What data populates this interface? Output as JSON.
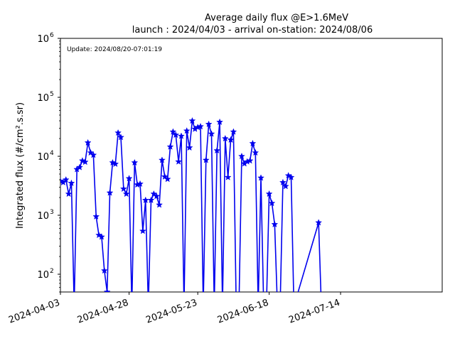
{
  "chart_data": {
    "type": "line",
    "title": "Average daily flux @E>1.6MeV",
    "subtitle": "launch : 2024/04/03 - arrival on-station: 2024/08/06",
    "annotation": "Update: 2024/08/20-07:01:19",
    "ylabel": "Integrated flux (#/cm².s.sr)",
    "xlabel": "",
    "y_scale": "log",
    "ylim": [
      50,
      1000000
    ],
    "xlim": [
      "2024-04-03",
      "2024-08-20"
    ],
    "x_ticks": [
      "2024-04-03",
      "2024-04-28",
      "2024-05-23",
      "2024-06-18",
      "2024-07-14"
    ],
    "y_ticks": [
      {
        "value": 100,
        "label": "10",
        "exp": "2"
      },
      {
        "value": 1000,
        "label": "10",
        "exp": "3"
      },
      {
        "value": 10000,
        "label": "10",
        "exp": "4"
      },
      {
        "value": 100000,
        "label": "10",
        "exp": "5"
      },
      {
        "value": 1000000,
        "label": "10",
        "exp": "6"
      }
    ],
    "color": "#0000ee",
    "marker": "star",
    "grid": false,
    "series": [
      {
        "points": [
          [
            "2024-04-03",
            3800
          ],
          [
            "2024-04-04",
            3600
          ],
          [
            "2024-04-05",
            4000
          ],
          [
            "2024-04-06",
            2300
          ],
          [
            "2024-04-07",
            3500
          ],
          [
            "2024-04-08",
            null
          ],
          [
            "2024-04-09",
            6000
          ],
          [
            "2024-04-10",
            6500
          ],
          [
            "2024-04-11",
            8400
          ],
          [
            "2024-04-12",
            8000
          ],
          [
            "2024-04-13",
            17000
          ],
          [
            "2024-04-14",
            11500
          ],
          [
            "2024-04-15",
            10500
          ],
          [
            "2024-04-16",
            950
          ],
          [
            "2024-04-17",
            460
          ],
          [
            "2024-04-18",
            430
          ],
          [
            "2024-04-19",
            115
          ],
          [
            "2024-04-20",
            50
          ],
          [
            "2024-04-21",
            2400
          ],
          [
            "2024-04-22",
            7800
          ],
          [
            "2024-04-23",
            7400
          ],
          [
            "2024-04-24",
            25000
          ],
          [
            "2024-04-25",
            21000
          ],
          [
            "2024-04-26",
            2800
          ],
          [
            "2024-04-27",
            2300
          ],
          [
            "2024-04-28",
            4200
          ],
          [
            "2024-04-29",
            null
          ],
          [
            "2024-04-30",
            7800
          ],
          [
            "2024-05-01",
            3300
          ],
          [
            "2024-05-02",
            3400
          ],
          [
            "2024-05-03",
            540
          ],
          [
            "2024-05-04",
            1800
          ],
          [
            "2024-05-05",
            null
          ],
          [
            "2024-05-06",
            1800
          ],
          [
            "2024-05-07",
            2300
          ],
          [
            "2024-05-08",
            2100
          ],
          [
            "2024-05-09",
            1500
          ],
          [
            "2024-05-10",
            8600
          ],
          [
            "2024-05-11",
            4500
          ],
          [
            "2024-05-12",
            4100
          ],
          [
            "2024-05-13",
            14500
          ],
          [
            "2024-05-14",
            26000
          ],
          [
            "2024-05-15",
            23000
          ],
          [
            "2024-05-16",
            8100
          ],
          [
            "2024-05-17",
            22000
          ],
          [
            "2024-05-18",
            null
          ],
          [
            "2024-05-19",
            27000
          ],
          [
            "2024-05-20",
            14000
          ],
          [
            "2024-05-21",
            40000
          ],
          [
            "2024-05-22",
            29000
          ],
          [
            "2024-05-23",
            31000
          ],
          [
            "2024-05-24",
            32000
          ],
          [
            "2024-05-25",
            null
          ],
          [
            "2024-05-26",
            8600
          ],
          [
            "2024-05-27",
            35000
          ],
          [
            "2024-05-28",
            24000
          ],
          [
            "2024-05-29",
            null
          ],
          [
            "2024-05-30",
            12500
          ],
          [
            "2024-05-31",
            38000
          ],
          [
            "2024-06-01",
            null
          ],
          [
            "2024-06-02",
            20000
          ],
          [
            "2024-06-03",
            4400
          ],
          [
            "2024-06-04",
            19000
          ],
          [
            "2024-06-05",
            26000
          ],
          [
            "2024-06-06",
            null
          ],
          [
            "2024-06-07",
            null
          ],
          [
            "2024-06-08",
            10000
          ],
          [
            "2024-06-09",
            7500
          ],
          [
            "2024-06-10",
            8100
          ],
          [
            "2024-06-11",
            8400
          ],
          [
            "2024-06-12",
            16500
          ],
          [
            "2024-06-13",
            11500
          ],
          [
            "2024-06-14",
            null
          ],
          [
            "2024-06-15",
            4300
          ],
          [
            "2024-06-16",
            null
          ],
          [
            "2024-06-17",
            null
          ],
          [
            "2024-06-18",
            2300
          ],
          [
            "2024-06-19",
            1600
          ],
          [
            "2024-06-20",
            700
          ],
          [
            "2024-06-21",
            null
          ],
          [
            "2024-06-22",
            null
          ],
          [
            "2024-06-23",
            3600
          ],
          [
            "2024-06-24",
            3100
          ],
          [
            "2024-06-25",
            4700
          ],
          [
            "2024-06-26",
            4400
          ],
          [
            "2024-06-27",
            null
          ],
          [
            "2024-07-06",
            750
          ],
          [
            "2024-07-07",
            null
          ]
        ]
      }
    ]
  }
}
